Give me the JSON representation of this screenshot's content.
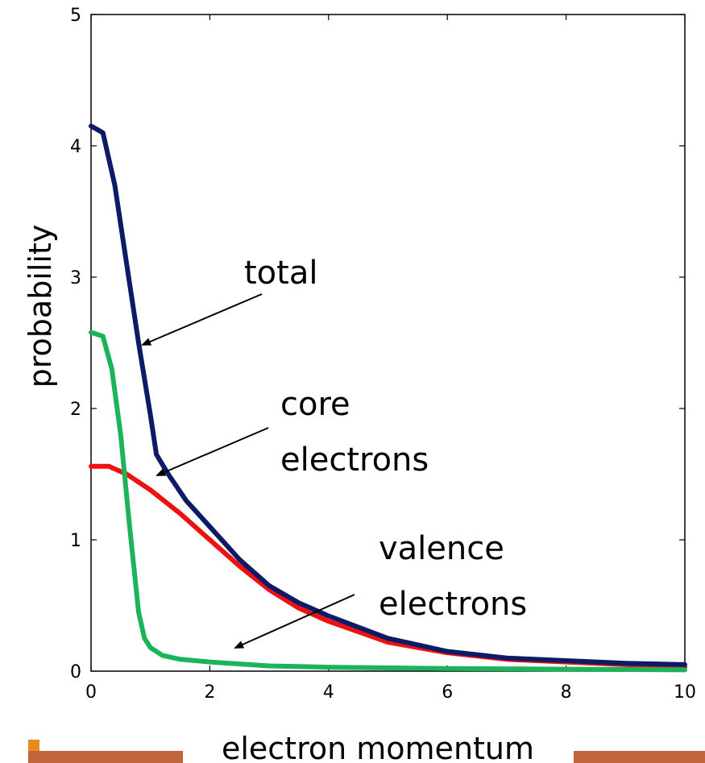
{
  "chart_data": {
    "type": "line",
    "xlabel": "electron momentum",
    "ylabel": "probability",
    "xlim": [
      0,
      10
    ],
    "ylim": [
      0,
      5
    ],
    "x_ticks": [
      "0",
      "2",
      "4",
      "6",
      "8",
      "10"
    ],
    "y_ticks": [
      "0",
      "1",
      "2",
      "3",
      "4",
      "5"
    ],
    "grid": false,
    "legend": "none",
    "series": [
      {
        "name": "total",
        "color": "#0d1a66",
        "points": [
          [
            0,
            4.15
          ],
          [
            0.2,
            4.1
          ],
          [
            0.4,
            3.7
          ],
          [
            0.6,
            3.1
          ],
          [
            0.8,
            2.5
          ],
          [
            1.0,
            1.95
          ],
          [
            1.1,
            1.65
          ],
          [
            1.3,
            1.5
          ],
          [
            1.6,
            1.3
          ],
          [
            2.0,
            1.1
          ],
          [
            2.5,
            0.85
          ],
          [
            3.0,
            0.65
          ],
          [
            3.5,
            0.52
          ],
          [
            4.0,
            0.42
          ],
          [
            5.0,
            0.25
          ],
          [
            6.0,
            0.15
          ],
          [
            7.0,
            0.1
          ],
          [
            8.0,
            0.08
          ],
          [
            9.0,
            0.06
          ],
          [
            10.0,
            0.05
          ]
        ]
      },
      {
        "name": "core electrons",
        "color": "#ee1111",
        "points": [
          [
            0,
            1.56
          ],
          [
            0.3,
            1.56
          ],
          [
            0.6,
            1.5
          ],
          [
            1.0,
            1.38
          ],
          [
            1.5,
            1.2
          ],
          [
            2.0,
            1.0
          ],
          [
            2.5,
            0.8
          ],
          [
            3.0,
            0.62
          ],
          [
            3.5,
            0.48
          ],
          [
            4.0,
            0.38
          ],
          [
            5.0,
            0.22
          ],
          [
            6.0,
            0.14
          ],
          [
            7.0,
            0.09
          ],
          [
            8.0,
            0.07
          ],
          [
            9.0,
            0.05
          ],
          [
            10.0,
            0.03
          ]
        ]
      },
      {
        "name": "valence electrons",
        "color": "#1db35a",
        "points": [
          [
            0,
            2.58
          ],
          [
            0.2,
            2.55
          ],
          [
            0.35,
            2.3
          ],
          [
            0.5,
            1.8
          ],
          [
            0.65,
            1.1
          ],
          [
            0.8,
            0.45
          ],
          [
            0.9,
            0.25
          ],
          [
            1.0,
            0.18
          ],
          [
            1.2,
            0.12
          ],
          [
            1.5,
            0.09
          ],
          [
            2.0,
            0.07
          ],
          [
            3.0,
            0.04
          ],
          [
            4.0,
            0.03
          ],
          [
            6.0,
            0.02
          ],
          [
            8.0,
            0.015
          ],
          [
            10.0,
            0.01
          ]
        ]
      }
    ],
    "annotations": {
      "total": "total",
      "core_1": "core",
      "core_2": "electrons",
      "valence_1": "valence",
      "valence_2": "electrons"
    }
  },
  "colors": {
    "footer_bar": "#c0643c",
    "footer_accent": "#e98a20"
  }
}
